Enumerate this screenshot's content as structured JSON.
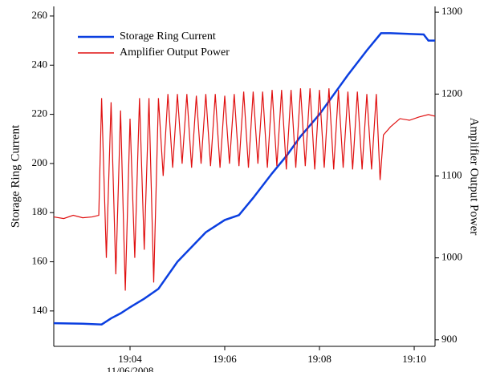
{
  "chart_data": {
    "type": "line",
    "y_label": "Storage Ring Current",
    "y2_label": "Amplifier Output Power",
    "x_date_label": "11/06/2008",
    "xlim": [
      2.39,
      10.44
    ],
    "xticks": [
      {
        "value": 4,
        "label": "19:04"
      },
      {
        "value": 6,
        "label": "19:06"
      },
      {
        "value": 8,
        "label": "19:08"
      },
      {
        "value": 10,
        "label": "19:10"
      }
    ],
    "ylim": [
      125.6,
      263.9
    ],
    "yticks": [
      140,
      160,
      180,
      200,
      220,
      240,
      260
    ],
    "y2lim": [
      892,
      1307
    ],
    "y2ticks": [
      900,
      1000,
      1100,
      1200,
      1300
    ],
    "legend": "upper-left",
    "series": [
      {
        "name": "Storage Ring Current",
        "color": "#0b3fe0",
        "x": [
          2.39,
          3.0,
          3.4,
          3.6,
          3.8,
          4.0,
          4.3,
          4.6,
          5.0,
          5.3,
          5.6,
          6.0,
          6.3,
          6.6,
          7.0,
          7.3,
          7.6,
          8.0,
          8.3,
          8.6,
          9.0,
          9.3,
          9.5,
          10.2,
          10.3,
          10.44
        ],
        "values": [
          135,
          134.8,
          134.5,
          137,
          139,
          141.5,
          145,
          149,
          160,
          166,
          172,
          177,
          179,
          186,
          196,
          203,
          211,
          220,
          228,
          236,
          246,
          253,
          253,
          252.5,
          250,
          250
        ]
      },
      {
        "name": "Amplifier Output Power",
        "color": "#e01010",
        "axis": "y2",
        "x": [
          2.39,
          2.6,
          2.8,
          3.0,
          3.2,
          3.34,
          3.4,
          3.5,
          3.6,
          3.7,
          3.8,
          3.9,
          4.0,
          4.1,
          4.2,
          4.3,
          4.4,
          4.5,
          4.6,
          4.7,
          4.8,
          4.9,
          5.0,
          5.1,
          5.2,
          5.3,
          5.4,
          5.5,
          5.6,
          5.7,
          5.8,
          5.9,
          6.0,
          6.1,
          6.2,
          6.3,
          6.4,
          6.5,
          6.6,
          6.7,
          6.8,
          6.9,
          7.0,
          7.1,
          7.2,
          7.3,
          7.4,
          7.5,
          7.6,
          7.7,
          7.8,
          7.9,
          8.0,
          8.1,
          8.2,
          8.3,
          8.4,
          8.5,
          8.6,
          8.7,
          8.8,
          8.9,
          9.0,
          9.1,
          9.2,
          9.28,
          9.35,
          9.5,
          9.7,
          9.9,
          10.1,
          10.3,
          10.44
        ],
        "values": [
          1050,
          1048,
          1052,
          1049,
          1050,
          1052,
          1195,
          1000,
          1190,
          980,
          1180,
          960,
          1170,
          1000,
          1195,
          1010,
          1195,
          970,
          1195,
          1100,
          1200,
          1110,
          1200,
          1115,
          1200,
          1110,
          1198,
          1115,
          1200,
          1112,
          1200,
          1110,
          1198,
          1115,
          1200,
          1112,
          1203,
          1110,
          1203,
          1115,
          1203,
          1110,
          1205,
          1112,
          1205,
          1108,
          1205,
          1110,
          1207,
          1112,
          1207,
          1108,
          1205,
          1110,
          1207,
          1108,
          1205,
          1110,
          1203,
          1108,
          1203,
          1108,
          1200,
          1108,
          1200,
          1095,
          1150,
          1160,
          1170,
          1168,
          1172,
          1175,
          1173
        ]
      }
    ]
  }
}
